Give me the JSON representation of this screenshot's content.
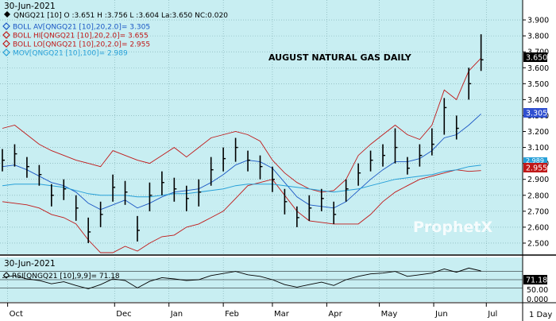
{
  "header": {
    "date": "30-Jun-2021",
    "quote": "QNGQ21 [10] O :3.651 H :3.756 L :3.604 La:3.650 NC:0.020"
  },
  "legend": [
    {
      "label": "BOLL AV[QNGQ21 [10],20,2.0]= 3.305",
      "color": "#1a56c4"
    },
    {
      "label": "BOLL HI[QNGQ21 [10],20,2.0]= 3.655",
      "color": "#c01818"
    },
    {
      "label": "BOLL LO[QNGQ21 [10],20,2.0]= 2.955",
      "color": "#c01818"
    },
    {
      "label": "MOV[QNGQ21 [10],100]= 2.989",
      "color": "#27a0d8"
    }
  ],
  "chart_title": "AUGUST NATURAL GAS DAILY",
  "watermark": "ProphetX",
  "price_axis": {
    "ticks": [
      "3.900",
      "3.800",
      "3.700",
      "3.600",
      "3.500",
      "3.400",
      "3.300",
      "3.200",
      "3.100",
      "3.000",
      "2.900",
      "2.800",
      "2.700",
      "2.600",
      "2.500"
    ],
    "last_price_tag": "3.650",
    "boll_av_tag": "3.305",
    "mov_tag": "2.989",
    "boll_lo_tag": "2.955"
  },
  "rsi_panel": {
    "date": "30-Jun-2021",
    "label": "RSI[QNGQ21 [10],9,9]= 71.18",
    "ticks": [
      "50.00",
      "0.000"
    ],
    "value_tag": "71.18"
  },
  "x_axis": {
    "months": [
      "Oct",
      "Dec",
      "Jan",
      "Feb",
      "Mar",
      "Apr",
      "May",
      "Jun",
      "Jul"
    ],
    "right_label": "1 Day"
  },
  "colors": {
    "plot_bg": "#c8eef2",
    "axis_bg": "#ffffff",
    "boll_band": "#c01818",
    "boll_avg": "#1a56c4",
    "mov": "#27a0d8",
    "price_bar": "#000000",
    "tag_dark": "#000000",
    "tag_blue": "#2f4fd0",
    "tag_red": "#c01818"
  },
  "chart_data": {
    "type": "ohlc",
    "ylim": [
      2.45,
      4.0
    ],
    "rsi_ylim": [
      0,
      100
    ],
    "x": [
      "2020-09-28",
      "2020-10-05",
      "2020-10-12",
      "2020-10-19",
      "2020-10-26",
      "2020-11-02",
      "2020-11-09",
      "2020-11-16",
      "2020-11-23",
      "2020-11-30",
      "2020-12-07",
      "2020-12-14",
      "2020-12-21",
      "2020-12-28",
      "2021-01-04",
      "2021-01-11",
      "2021-01-18",
      "2021-01-25",
      "2021-02-01",
      "2021-02-08",
      "2021-02-15",
      "2021-02-22",
      "2021-03-01",
      "2021-03-08",
      "2021-03-15",
      "2021-03-22",
      "2021-03-29",
      "2021-04-05",
      "2021-04-12",
      "2021-04-19",
      "2021-04-26",
      "2021-05-03",
      "2021-05-10",
      "2021-05-17",
      "2021-05-24",
      "2021-05-31",
      "2021-06-07",
      "2021-06-14",
      "2021-06-21",
      "2021-06-28"
    ],
    "close": [
      3.02,
      3.06,
      2.98,
      2.93,
      2.8,
      2.84,
      2.72,
      2.57,
      2.68,
      2.85,
      2.82,
      2.58,
      2.8,
      2.88,
      2.84,
      2.78,
      2.82,
      2.96,
      3.03,
      3.1,
      3.02,
      2.98,
      2.9,
      2.76,
      2.66,
      2.72,
      2.78,
      2.68,
      2.84,
      2.94,
      3.02,
      3.05,
      3.1,
      2.97,
      3.05,
      3.12,
      3.35,
      3.22,
      3.5,
      3.65
    ],
    "high": [
      3.09,
      3.12,
      3.04,
      2.99,
      2.87,
      2.9,
      2.8,
      2.66,
      2.76,
      2.93,
      2.89,
      2.67,
      2.88,
      2.95,
      2.91,
      2.86,
      2.9,
      3.04,
      3.1,
      3.16,
      3.08,
      3.05,
      2.98,
      2.84,
      2.73,
      2.8,
      2.84,
      2.76,
      2.9,
      3.0,
      3.08,
      3.12,
      3.22,
      3.04,
      3.12,
      3.22,
      3.41,
      3.3,
      3.6,
      3.81
    ],
    "low": [
      2.95,
      2.98,
      2.91,
      2.86,
      2.73,
      2.77,
      2.64,
      2.5,
      2.6,
      2.76,
      2.74,
      2.51,
      2.7,
      2.8,
      2.76,
      2.7,
      2.73,
      2.86,
      2.95,
      3.01,
      2.95,
      2.9,
      2.82,
      2.68,
      2.6,
      2.64,
      2.7,
      2.62,
      2.76,
      2.86,
      2.95,
      2.98,
      3.0,
      2.93,
      2.98,
      3.05,
      3.18,
      3.15,
      3.4,
      3.58
    ],
    "boll_hi": [
      3.22,
      3.24,
      3.18,
      3.12,
      3.08,
      3.05,
      3.02,
      3.0,
      2.98,
      3.08,
      3.05,
      3.02,
      3.0,
      3.05,
      3.1,
      3.04,
      3.1,
      3.16,
      3.18,
      3.2,
      3.18,
      3.14,
      3.02,
      2.94,
      2.88,
      2.84,
      2.82,
      2.83,
      2.9,
      3.05,
      3.12,
      3.18,
      3.24,
      3.18,
      3.15,
      3.24,
      3.46,
      3.4,
      3.58,
      3.66
    ],
    "boll_avg": [
      2.98,
      2.99,
      2.96,
      2.92,
      2.88,
      2.86,
      2.82,
      2.75,
      2.71,
      2.74,
      2.77,
      2.72,
      2.75,
      2.79,
      2.82,
      2.83,
      2.84,
      2.88,
      2.93,
      2.99,
      3.02,
      3.01,
      2.97,
      2.88,
      2.79,
      2.74,
      2.73,
      2.72,
      2.76,
      2.83,
      2.9,
      2.96,
      3.01,
      3.01,
      3.03,
      3.08,
      3.16,
      3.18,
      3.24,
      3.31
    ],
    "boll_lo": [
      2.76,
      2.75,
      2.74,
      2.72,
      2.68,
      2.66,
      2.62,
      2.52,
      2.44,
      2.44,
      2.48,
      2.45,
      2.5,
      2.54,
      2.55,
      2.6,
      2.62,
      2.66,
      2.7,
      2.78,
      2.86,
      2.88,
      2.9,
      2.8,
      2.7,
      2.64,
      2.63,
      2.62,
      2.62,
      2.62,
      2.68,
      2.76,
      2.82,
      2.86,
      2.9,
      2.92,
      2.94,
      2.96,
      2.95,
      2.955
    ],
    "mov": [
      2.86,
      2.87,
      2.87,
      2.87,
      2.86,
      2.85,
      2.83,
      2.81,
      2.8,
      2.8,
      2.8,
      2.79,
      2.79,
      2.8,
      2.81,
      2.81,
      2.82,
      2.83,
      2.84,
      2.86,
      2.87,
      2.87,
      2.87,
      2.86,
      2.85,
      2.84,
      2.83,
      2.82,
      2.83,
      2.84,
      2.86,
      2.88,
      2.9,
      2.91,
      2.92,
      2.93,
      2.95,
      2.96,
      2.98,
      2.989
    ],
    "rsi": [
      55,
      60,
      52,
      48,
      40,
      45,
      36,
      28,
      38,
      52,
      48,
      30,
      46,
      55,
      52,
      48,
      50,
      60,
      65,
      70,
      62,
      58,
      50,
      38,
      32,
      38,
      44,
      36,
      50,
      58,
      64,
      66,
      70,
      58,
      62,
      66,
      76,
      68,
      78,
      71.18
    ]
  }
}
